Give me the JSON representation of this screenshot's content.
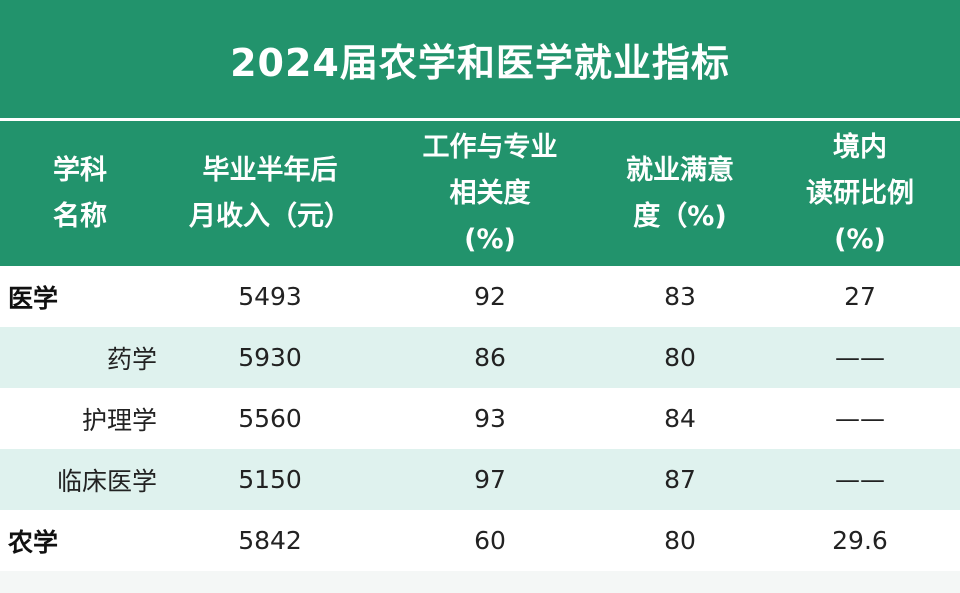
{
  "title": "2024届农学和医学就业指标",
  "columns": [
    "学科\n名称",
    "毕业半年后\n月收入（元）",
    "工作与专业\n相关度\n(%)",
    "就业满意\n度（%)",
    "境内\n读研比例\n(%)"
  ],
  "rows": [
    {
      "name": "医学",
      "income": "5493",
      "relevance": "92",
      "satisfaction": "83",
      "grad_study": "27"
    },
    {
      "name": "药学",
      "income": "5930",
      "relevance": "86",
      "satisfaction": "80",
      "grad_study": "——"
    },
    {
      "name": "护理学",
      "income": "5560",
      "relevance": "93",
      "satisfaction": "84",
      "grad_study": "——"
    },
    {
      "name": "临床医学",
      "income": "5150",
      "relevance": "97",
      "satisfaction": "87",
      "grad_study": "——"
    },
    {
      "name": "农学",
      "income": "5842",
      "relevance": "60",
      "satisfaction": "80",
      "grad_study": "29.6"
    }
  ],
  "colors": {
    "header_green": "#22936c",
    "alt_row": "#dff2ee"
  }
}
